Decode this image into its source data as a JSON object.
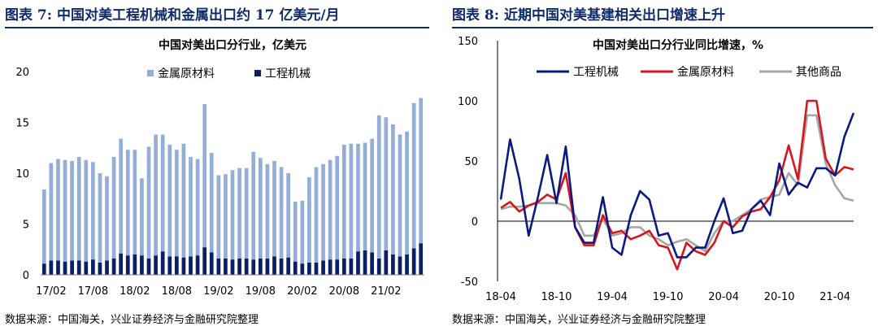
{
  "fig1": {
    "label": "图表 7: 中国对美工程机械和金属出口约 17 亿美元/月",
    "source": "数据来源：中国海关，兴业证券经济与金融研究院整理"
  },
  "fig2": {
    "label": "图表 8: 近期中国对美基建相关出口增速上升",
    "source": "数据来源：中国海关，兴业证券经济与金融研究院整理"
  },
  "colors": {
    "title": "#0f2c6a",
    "metal_bar": "#95aed8",
    "machinery_bar": "#0a1f66",
    "line_machinery": "#0a1a82",
    "line_metal": "#d7151c",
    "line_other": "#a6a6a6"
  },
  "chart_data": [
    {
      "type": "bar",
      "stacked": true,
      "title": "中国对美出口分行业，亿美元",
      "x_tick_labels": [
        "17/02",
        "17/08",
        "18/02",
        "18/08",
        "19/02",
        "19/08",
        "20/02",
        "20/08",
        "21/02"
      ],
      "ylim": [
        0,
        20
      ],
      "y_ticks": [
        0,
        5,
        10,
        15,
        20
      ],
      "legend_position": "top-center",
      "categories": [
        "2017-01",
        "2017-02",
        "2017-03",
        "2017-04",
        "2017-05",
        "2017-06",
        "2017-07",
        "2017-08",
        "2017-09",
        "2017-10",
        "2017-11",
        "2017-12",
        "2018-01",
        "2018-02",
        "2018-03",
        "2018-04",
        "2018-05",
        "2018-06",
        "2018-07",
        "2018-08",
        "2018-09",
        "2018-10",
        "2018-11",
        "2018-12",
        "2019-01",
        "2019-02",
        "2019-03",
        "2019-04",
        "2019-05",
        "2019-06",
        "2019-07",
        "2019-08",
        "2019-09",
        "2019-10",
        "2019-11",
        "2019-12",
        "2020-01",
        "2020-02",
        "2020-03",
        "2020-04",
        "2020-05",
        "2020-06",
        "2020-07",
        "2020-08",
        "2020-09",
        "2020-10",
        "2020-11",
        "2020-12",
        "2021-01",
        "2021-02",
        "2021-03",
        "2021-04",
        "2021-05",
        "2021-06",
        "2021-07"
      ],
      "series": [
        {
          "name": "工程机械",
          "values": [
            1.1,
            1.4,
            1.4,
            1.3,
            1.4,
            1.4,
            1.3,
            1.5,
            1.2,
            1.4,
            1.6,
            2.1,
            1.9,
            2.0,
            1.9,
            1.6,
            1.9,
            2.3,
            1.8,
            1.8,
            1.7,
            1.8,
            1.9,
            2.7,
            2.2,
            1.6,
            1.6,
            1.5,
            1.6,
            1.6,
            1.5,
            1.6,
            1.6,
            1.8,
            1.6,
            1.7,
            1.3,
            1.1,
            1.2,
            1.2,
            1.4,
            1.5,
            1.5,
            1.6,
            1.6,
            2.3,
            2.4,
            2.2,
            1.6,
            2.4,
            2.0,
            1.8,
            2.0,
            2.6,
            3.1
          ]
        },
        {
          "name": "金属原材料",
          "values": [
            7.3,
            9.6,
            10.0,
            10.0,
            9.8,
            10.2,
            10.0,
            9.6,
            8.8,
            8.3,
            10.0,
            11.3,
            10.4,
            10.3,
            7.6,
            11.0,
            11.9,
            11.5,
            11.0,
            10.5,
            11.2,
            9.8,
            9.5,
            14.1,
            9.8,
            8.2,
            8.3,
            8.8,
            8.9,
            8.9,
            10.6,
            9.9,
            9.3,
            9.4,
            9.0,
            8.3,
            5.9,
            6.2,
            8.4,
            9.4,
            9.5,
            9.8,
            10.2,
            11.2,
            11.3,
            10.6,
            10.6,
            11.2,
            14.1,
            13.1,
            12.8,
            12.0,
            12.1,
            14.3,
            14.3
          ]
        }
      ]
    },
    {
      "type": "line",
      "title": "中国对美出口分行业同比增速，%",
      "x_tick_labels": [
        "18-04",
        "18-10",
        "19-04",
        "19-10",
        "20-04",
        "20-10",
        "21-04"
      ],
      "ylim": [
        -50,
        150
      ],
      "y_ticks": [
        -50,
        0,
        50,
        100,
        150
      ],
      "legend_position": "top",
      "x": [
        "2018-04",
        "2018-05",
        "2018-06",
        "2018-07",
        "2018-08",
        "2018-09",
        "2018-10",
        "2018-11",
        "2018-12",
        "2019-01",
        "2019-02",
        "2019-03",
        "2019-04",
        "2019-05",
        "2019-06",
        "2019-07",
        "2019-08",
        "2019-09",
        "2019-10",
        "2019-11",
        "2019-12",
        "2020-01",
        "2020-02",
        "2020-03",
        "2020-04",
        "2020-05",
        "2020-06",
        "2020-07",
        "2020-08",
        "2020-09",
        "2020-10",
        "2020-11",
        "2020-12",
        "2021-01",
        "2021-02",
        "2021-03",
        "2021-04",
        "2021-05",
        "2021-06"
      ],
      "series": [
        {
          "name": "工程机械",
          "values": [
            18,
            68,
            35,
            -12,
            20,
            55,
            15,
            62,
            -5,
            -18,
            -18,
            20,
            -22,
            -28,
            5,
            25,
            18,
            -12,
            -10,
            -30,
            -30,
            -22,
            -22,
            0,
            19,
            -10,
            -8,
            10,
            17,
            5,
            48,
            22,
            32,
            28,
            44,
            44,
            38,
            70,
            90
          ]
        },
        {
          "name": "金属原材料",
          "values": [
            11,
            16,
            8,
            13,
            16,
            22,
            18,
            40,
            -5,
            -20,
            -20,
            5,
            -10,
            -8,
            -15,
            -12,
            -8,
            -20,
            -22,
            -40,
            -18,
            -25,
            -28,
            -18,
            0,
            -5,
            4,
            8,
            10,
            20,
            34,
            63,
            35,
            100,
            100,
            52,
            38,
            45,
            43
          ]
        },
        {
          "name": "其他商品",
          "values": [
            10,
            12,
            12,
            13,
            15,
            15,
            15,
            13,
            5,
            -12,
            -12,
            2,
            -12,
            -10,
            -5,
            -5,
            -12,
            -15,
            -20,
            -17,
            -15,
            -20,
            -25,
            -10,
            0,
            0,
            5,
            10,
            18,
            20,
            22,
            40,
            30,
            88,
            88,
            48,
            30,
            19,
            17
          ]
        }
      ]
    }
  ]
}
